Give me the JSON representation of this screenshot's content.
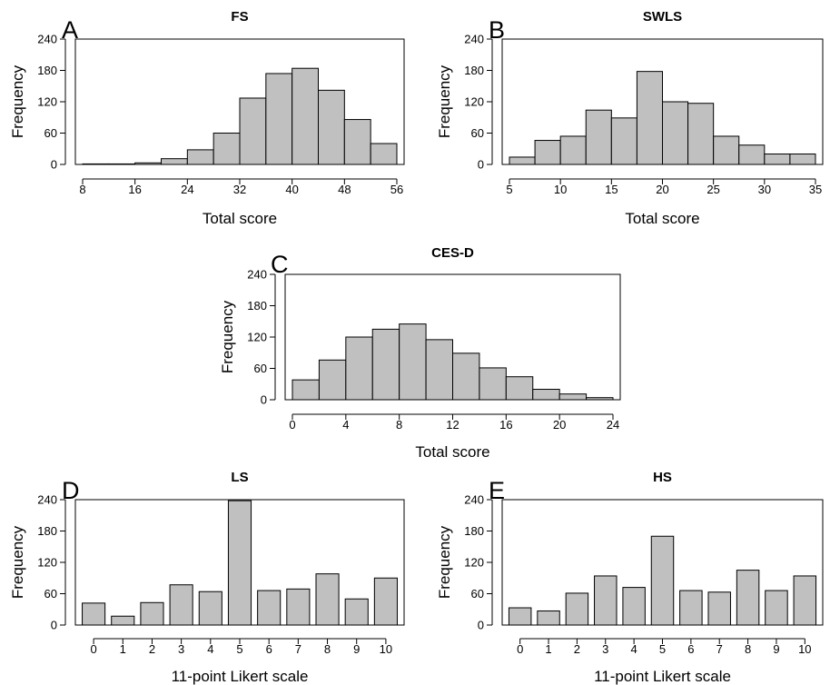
{
  "figure": {
    "colors": {
      "bar_fill": "#c0c0c0",
      "bar_stroke": "#000000",
      "frame": "#000000"
    }
  },
  "chart_data": [
    {
      "type": "bar",
      "variant": "histogram",
      "panel_label": "A",
      "title": "FS",
      "xlabel": "Total score",
      "ylabel": "Frequency",
      "ylim": [
        0,
        240
      ],
      "yticks": [
        0,
        60,
        120,
        180,
        240
      ],
      "xlim": [
        8,
        56
      ],
      "xticks": [
        8,
        16,
        24,
        32,
        40,
        48,
        56
      ],
      "bin_width": 4,
      "bin_edges": [
        8,
        12,
        16,
        20,
        24,
        28,
        32,
        36,
        40,
        44,
        48,
        52,
        56
      ],
      "values": [
        1,
        1,
        3,
        11,
        28,
        60,
        127,
        174,
        184,
        142,
        86,
        40
      ],
      "grid": false
    },
    {
      "type": "bar",
      "variant": "histogram",
      "panel_label": "B",
      "title": "SWLS",
      "xlabel": "Total score",
      "ylabel": "Frequency",
      "ylim": [
        0,
        240
      ],
      "yticks": [
        0,
        60,
        120,
        180,
        240
      ],
      "xlim": [
        5,
        35
      ],
      "xticks": [
        5,
        10,
        15,
        20,
        25,
        30,
        35
      ],
      "bin_width": 2.5,
      "bin_edges": [
        5,
        7.5,
        10,
        12.5,
        15,
        17.5,
        20,
        22.5,
        25,
        27.5,
        30,
        32.5,
        35
      ],
      "values": [
        14,
        46,
        54,
        104,
        89,
        178,
        120,
        117,
        54,
        37,
        20,
        20
      ],
      "grid": false
    },
    {
      "type": "bar",
      "variant": "histogram",
      "panel_label": "C",
      "title": "CES-D",
      "xlabel": "Total score",
      "ylabel": "Frequency",
      "ylim": [
        0,
        240
      ],
      "yticks": [
        0,
        60,
        120,
        180,
        240
      ],
      "xlim": [
        0,
        24
      ],
      "xticks": [
        0,
        4,
        8,
        12,
        16,
        20,
        24
      ],
      "bin_width": 2,
      "bin_edges": [
        0,
        2,
        4,
        6,
        8,
        10,
        12,
        14,
        16,
        18,
        20,
        22,
        24
      ],
      "values": [
        38,
        76,
        120,
        135,
        145,
        115,
        89,
        61,
        44,
        20,
        11,
        4
      ],
      "grid": false
    },
    {
      "type": "bar",
      "panel_label": "D",
      "title": "LS",
      "xlabel": "11-point Likert scale",
      "ylabel": "Frequency",
      "ylim": [
        0,
        240
      ],
      "yticks": [
        0,
        60,
        120,
        180,
        240
      ],
      "categories": [
        "0",
        "1",
        "2",
        "3",
        "4",
        "5",
        "6",
        "7",
        "8",
        "9",
        "10"
      ],
      "values": [
        42,
        17,
        43,
        77,
        64,
        238,
        66,
        69,
        98,
        50,
        90
      ],
      "grid": false
    },
    {
      "type": "bar",
      "panel_label": "E",
      "title": "HS",
      "xlabel": "11-point Likert scale",
      "ylabel": "Frequency",
      "ylim": [
        0,
        240
      ],
      "yticks": [
        0,
        60,
        120,
        180,
        240
      ],
      "categories": [
        "0",
        "1",
        "2",
        "3",
        "4",
        "5",
        "6",
        "7",
        "8",
        "9",
        "10"
      ],
      "values": [
        33,
        27,
        61,
        94,
        72,
        170,
        66,
        63,
        105,
        66,
        94
      ],
      "grid": false
    }
  ]
}
